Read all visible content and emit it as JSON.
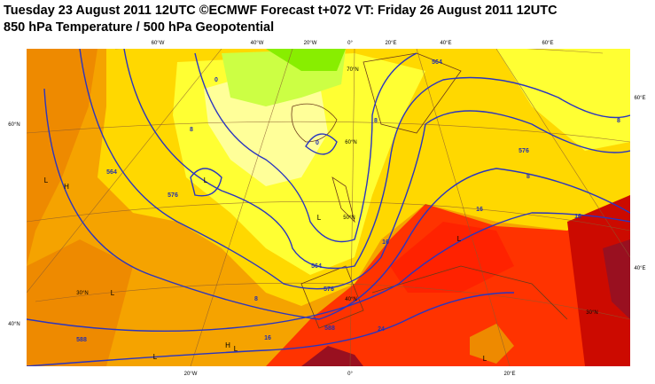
{
  "header": {
    "title": "Tuesday 23 August 2011 12UTC ©ECMWF Forecast t+072 VT: Friday 26 August 2011 12UTC",
    "subtitle": "850 hPa Temperature / 500 hPa Geopotential"
  },
  "map": {
    "top_labels": [
      "60°W",
      "40°W",
      "20°W",
      "0°",
      "20°E",
      "40°E",
      "60°E"
    ],
    "left_labels": [
      "60°N",
      "40°N"
    ],
    "right_labels": [
      "60°E",
      "40°E"
    ],
    "bottom_labels": [
      "20°W",
      "0°",
      "20°E"
    ],
    "latitude_labels": [
      "70°N",
      "60°N",
      "50°N",
      "40°N",
      "30°N",
      "30°N"
    ],
    "contour_labels": [
      "564",
      "576",
      "588",
      "564",
      "576",
      "588",
      "564",
      "576",
      "8",
      "8",
      "8",
      "16",
      "16",
      "16",
      "24",
      "8",
      "8",
      "0",
      "0",
      "16"
    ],
    "pressure_centers": [
      "L",
      "H",
      "L",
      "L",
      "L",
      "H",
      "L",
      "L",
      "L",
      "L"
    ]
  }
}
